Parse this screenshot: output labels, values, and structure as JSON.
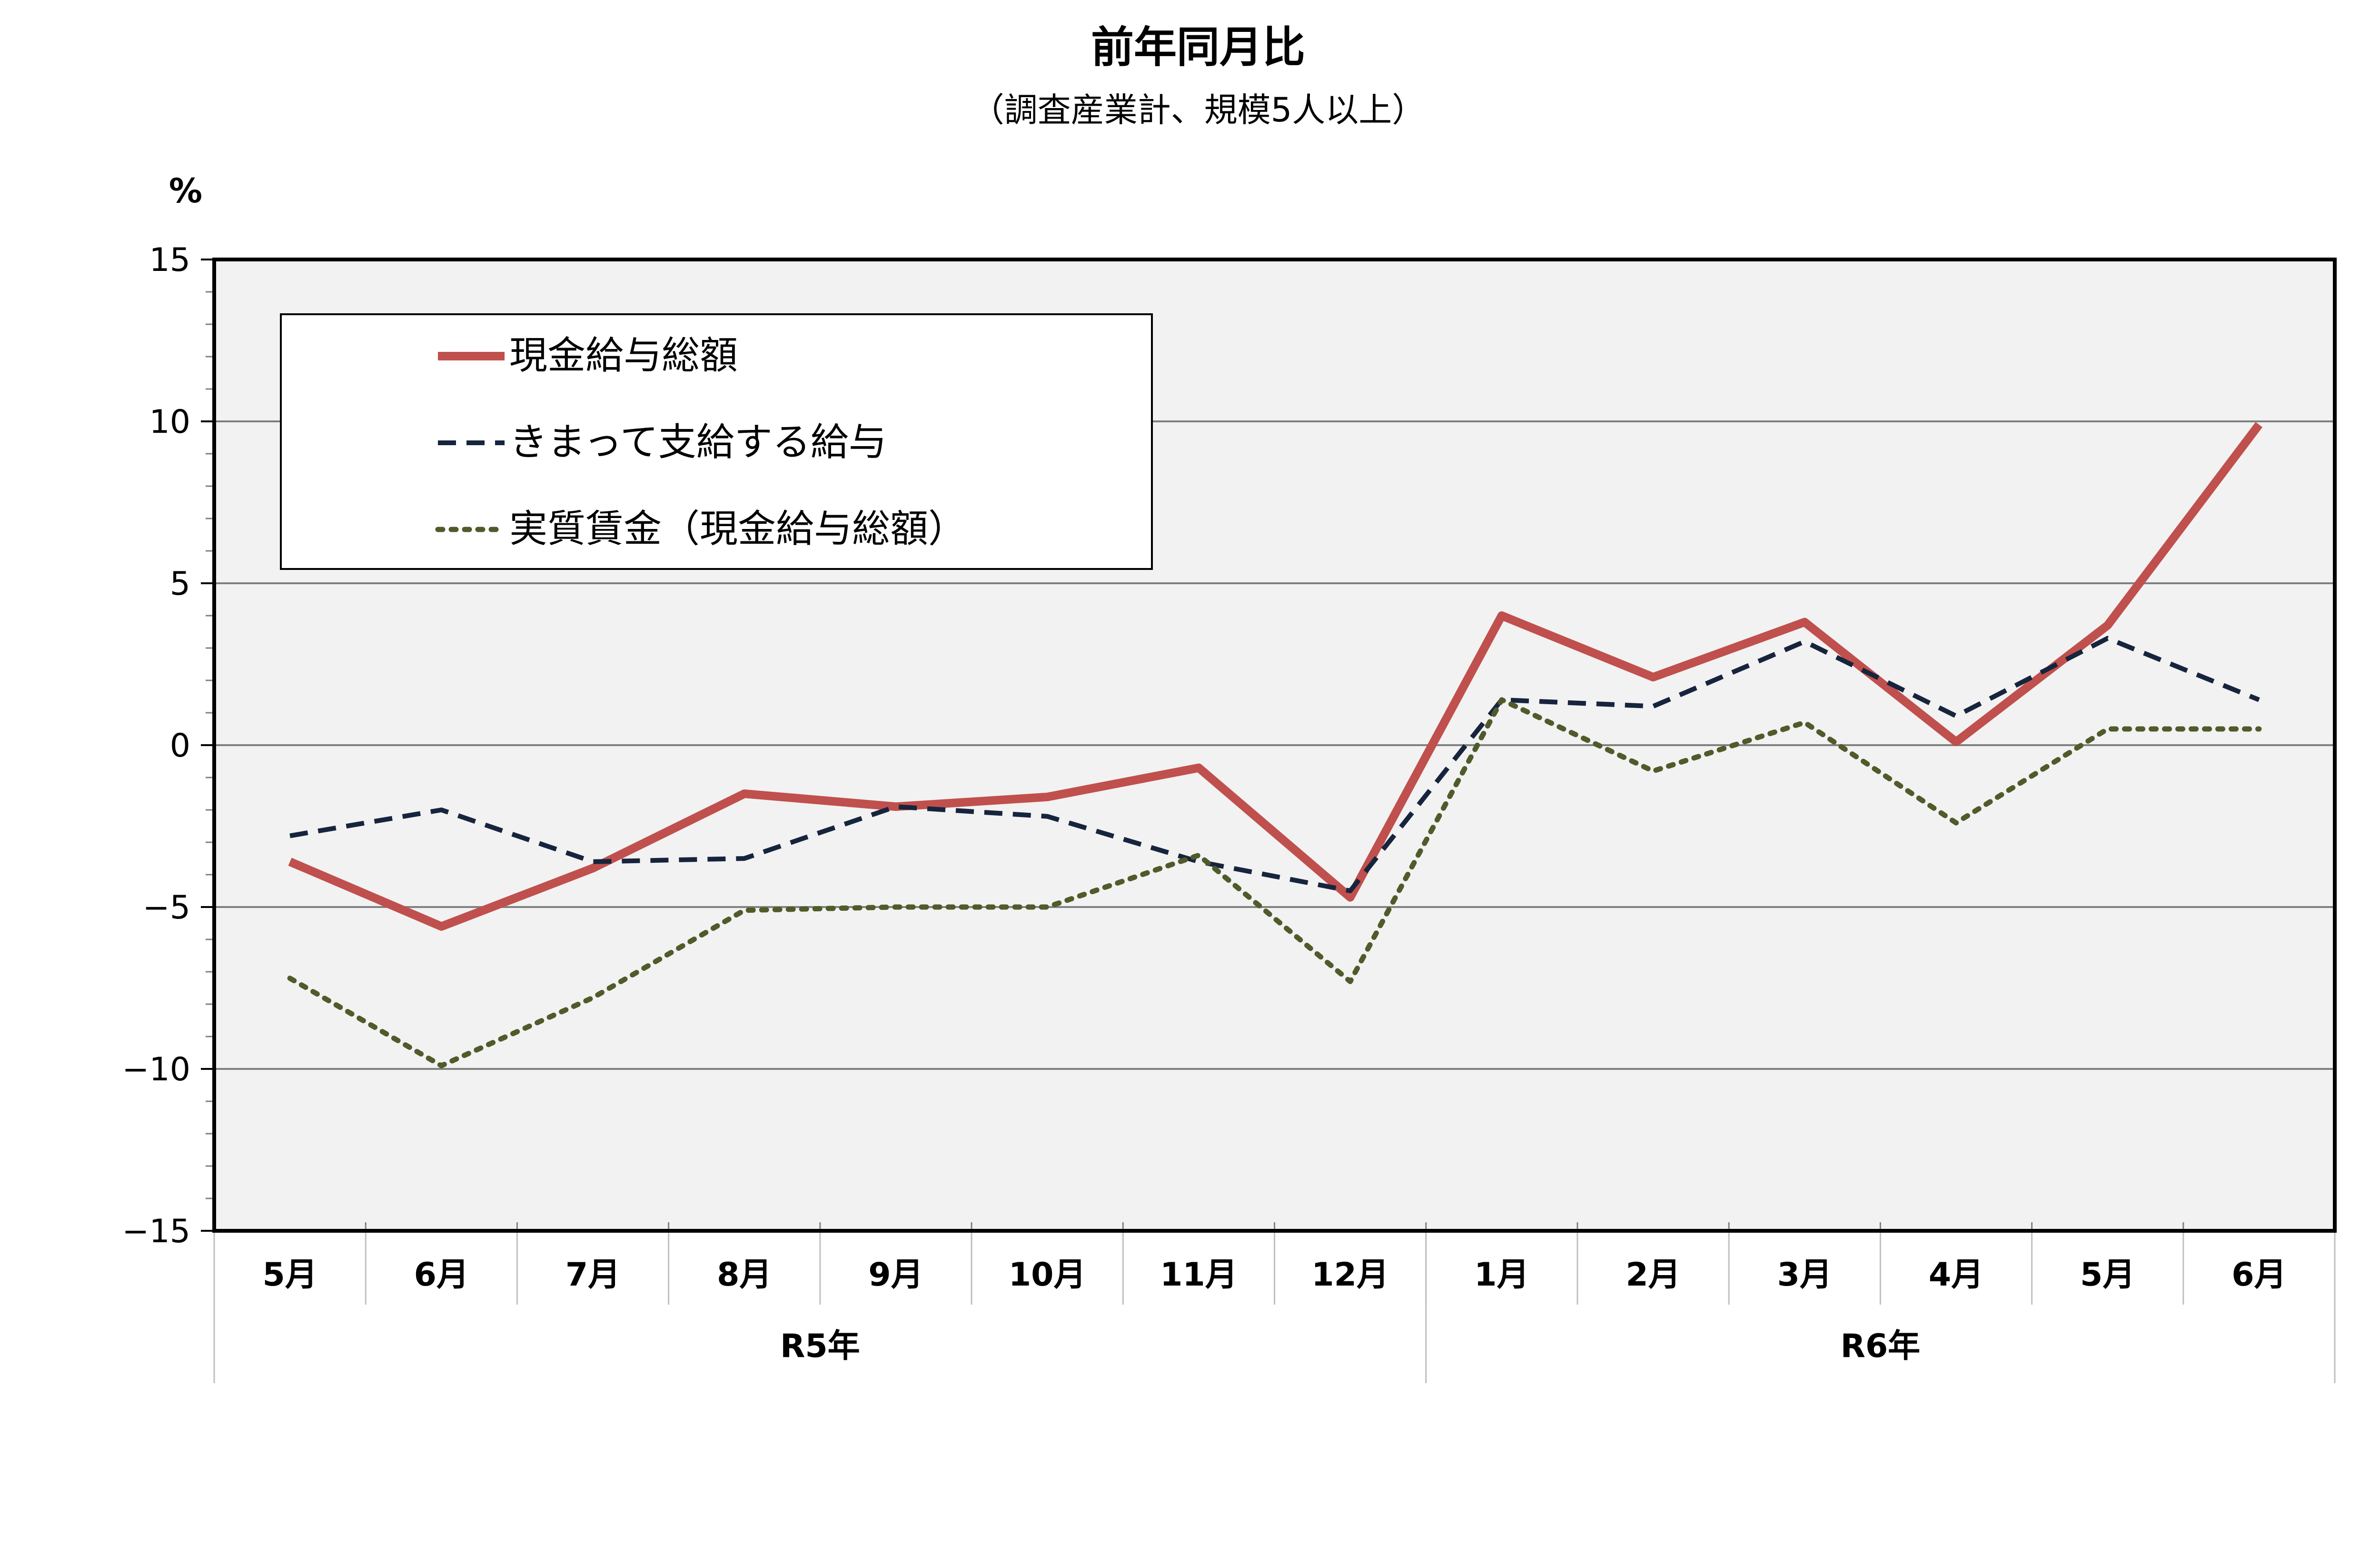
{
  "chart_data": {
    "type": "line",
    "title": "前年同月比",
    "subtitle": "（調査産業計、規模5人以上）",
    "ylabel": "%",
    "ylim": [
      -15,
      15
    ],
    "yticks": [
      15,
      10,
      5,
      0,
      -5,
      -10,
      -15
    ],
    "ytick_labels": [
      "15",
      "10",
      "5",
      "0",
      "−5",
      "−10",
      "−15"
    ],
    "categories": [
      "5月",
      "6月",
      "7月",
      "8月",
      "9月",
      "10月",
      "11月",
      "12月",
      "1月",
      "2月",
      "3月",
      "4月",
      "5月",
      "6月"
    ],
    "year_groups": [
      {
        "label": "R5年",
        "start": 0,
        "end": 7
      },
      {
        "label": "R6年",
        "start": 8,
        "end": 13
      }
    ],
    "grid": true,
    "legend_position": "top-left",
    "series": [
      {
        "name": "現金給与総額",
        "color": "#C0504D",
        "style": "solid",
        "values": [
          -3.6,
          -5.6,
          -3.8,
          -1.5,
          -1.9,
          -1.6,
          -0.7,
          -4.7,
          4.0,
          2.1,
          3.8,
          0.1,
          3.7,
          9.9
        ]
      },
      {
        "name": "きまって支給する給与",
        "color": "#17243D",
        "style": "dashed",
        "values": [
          -2.8,
          -2.0,
          -3.6,
          -3.5,
          -1.9,
          -2.2,
          -3.6,
          -4.5,
          1.4,
          1.2,
          3.2,
          0.9,
          3.3,
          1.4
        ]
      },
      {
        "name": "実質賃金（現金給与総額）",
        "color": "#4F5B2A",
        "style": "dotted",
        "values": [
          -7.2,
          -9.9,
          -7.8,
          -5.1,
          -5.0,
          -5.0,
          -3.4,
          -7.3,
          1.4,
          -0.8,
          0.7,
          -2.4,
          0.5,
          0.5
        ]
      }
    ]
  }
}
